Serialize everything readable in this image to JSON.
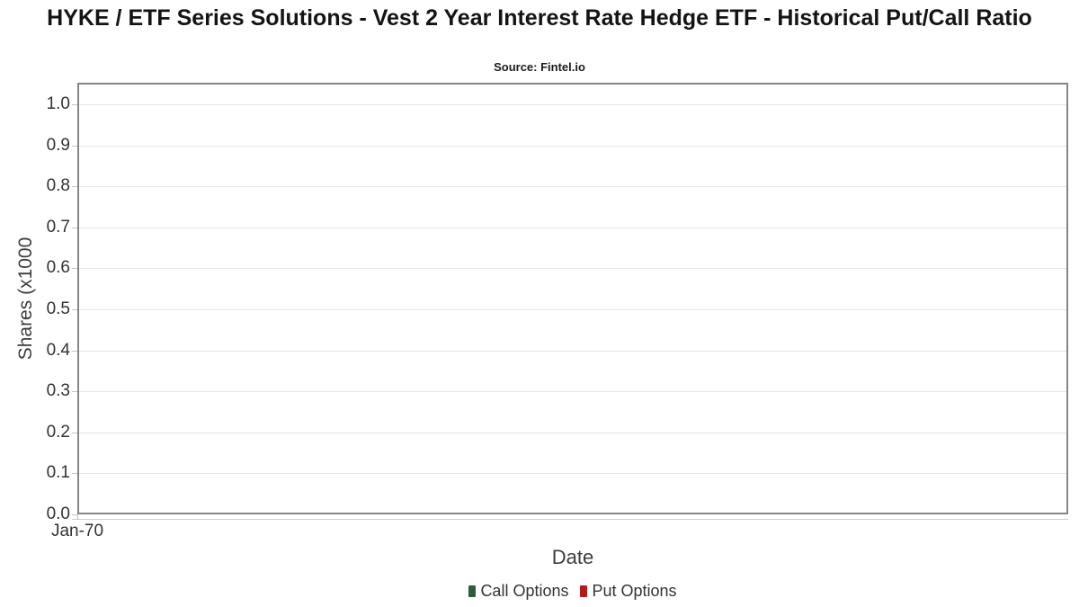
{
  "chart_data": {
    "type": "line",
    "title": "HYKE / ETF Series Solutions - Vest 2 Year Interest Rate Hedge ETF - Historical Put/Call Ratio",
    "subtitle": "Source: Fintel.io",
    "xlabel": "Date",
    "ylabel": "Shares (x1000",
    "x_tick_labels": [
      "Jan-70"
    ],
    "y_ticks": [
      0.0,
      0.1,
      0.2,
      0.3,
      0.4,
      0.5,
      0.6,
      0.7,
      0.8,
      0.9,
      1.0
    ],
    "y_tick_labels": [
      "0.0",
      "0.1",
      "0.2",
      "0.3",
      "0.4",
      "0.5",
      "0.6",
      "0.7",
      "0.8",
      "0.9",
      "1.0"
    ],
    "ylim": [
      0,
      1.0526
    ],
    "grid": "horizontal",
    "legend_position": "bottom-center",
    "plot_border_color": "#868686",
    "gridline_color": "#e6e6e6",
    "series": [
      {
        "name": "Call Options",
        "color": "#2b5e3c",
        "values": []
      },
      {
        "name": "Put Options",
        "color": "#b51a1a",
        "values": []
      }
    ],
    "note_plot_is_empty": true
  }
}
